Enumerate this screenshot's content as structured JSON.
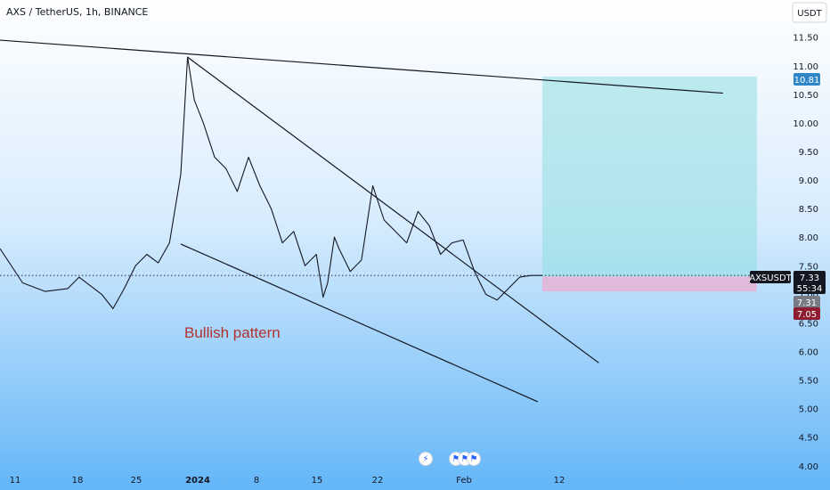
{
  "header": {
    "title": "AXS / TetherUS, 1h, BINANCE"
  },
  "currency_button": "USDT",
  "annotation": "Bullish pattern",
  "price_tags": {
    "target": "10.81",
    "symbol": "AXSUSDT",
    "last_price": "7.33",
    "countdown": "55:34",
    "entry": "7.31",
    "stop": "7.05"
  },
  "colors": {
    "line": "#131722",
    "target_zone": "#8fdfe0",
    "stop_zone": "#f3a6c8",
    "annotation": "#b2322f",
    "target_tag": "#2f86c9",
    "price_tag": "#131722",
    "entry_tag": "#787b86",
    "stop_tag": "#8c1c2e"
  },
  "event_icons": [
    "bolt-icon",
    "us-flag-icon",
    "us-flag-icon",
    "us-flag-icon"
  ],
  "chart_data": {
    "type": "line",
    "x_axis": {
      "tick_labels": [
        "11",
        "18",
        "25",
        "2024",
        "8",
        "15",
        "22",
        "Feb",
        "12"
      ]
    },
    "y_axis": {
      "tick_labels": [
        "11.50",
        "11.00",
        "10.50",
        "10.00",
        "9.50",
        "9.00",
        "8.50",
        "8.00",
        "7.50",
        "7.00",
        "6.50",
        "6.00",
        "5.50",
        "5.00",
        "4.50",
        "4.00"
      ],
      "ylim": [
        3.95,
        12.15
      ]
    },
    "series": [
      {
        "x": [
          0,
          1,
          2,
          3,
          3.5,
          4.5,
          5,
          5.5,
          6,
          6.5,
          7,
          7.5,
          8,
          8.3,
          8.6,
          9,
          9.5,
          10,
          10.5,
          11,
          11.5,
          12,
          12.5,
          13,
          13.5,
          14,
          14.3,
          14.5,
          14.8,
          15,
          15.5,
          16,
          16.5,
          17,
          17.5,
          18,
          18.5,
          19,
          19.5,
          20,
          20.5,
          21,
          21.5,
          22,
          22.5,
          23,
          23.5,
          24
        ],
        "y": [
          7.8,
          7.2,
          7.05,
          7.1,
          7.3,
          7.0,
          6.75,
          7.1,
          7.5,
          7.7,
          7.55,
          7.9,
          9.1,
          11.15,
          10.4,
          10.0,
          9.4,
          9.2,
          8.8,
          9.4,
          8.9,
          8.5,
          7.9,
          8.1,
          7.5,
          7.7,
          6.95,
          7.2,
          8.0,
          7.8,
          7.4,
          7.6,
          8.9,
          8.3,
          8.1,
          7.9,
          8.45,
          8.2,
          7.7,
          7.9,
          7.95,
          7.4,
          7.0,
          6.9,
          7.1,
          7.3,
          7.33,
          7.33
        ]
      }
    ],
    "trendlines": [
      {
        "from": [
          -7.0,
          11.65
        ],
        "to": [
          32.0,
          10.52
        ]
      },
      {
        "from": [
          8.3,
          11.15
        ],
        "to": [
          26.5,
          5.8
        ]
      },
      {
        "from": [
          8.0,
          7.88
        ],
        "to": [
          23.8,
          5.12
        ]
      }
    ],
    "long_position": {
      "x_start": 24,
      "x_end": 33.5,
      "entry": 7.31,
      "target": 10.81,
      "stop": 7.05
    },
    "last_price": 7.33
  }
}
